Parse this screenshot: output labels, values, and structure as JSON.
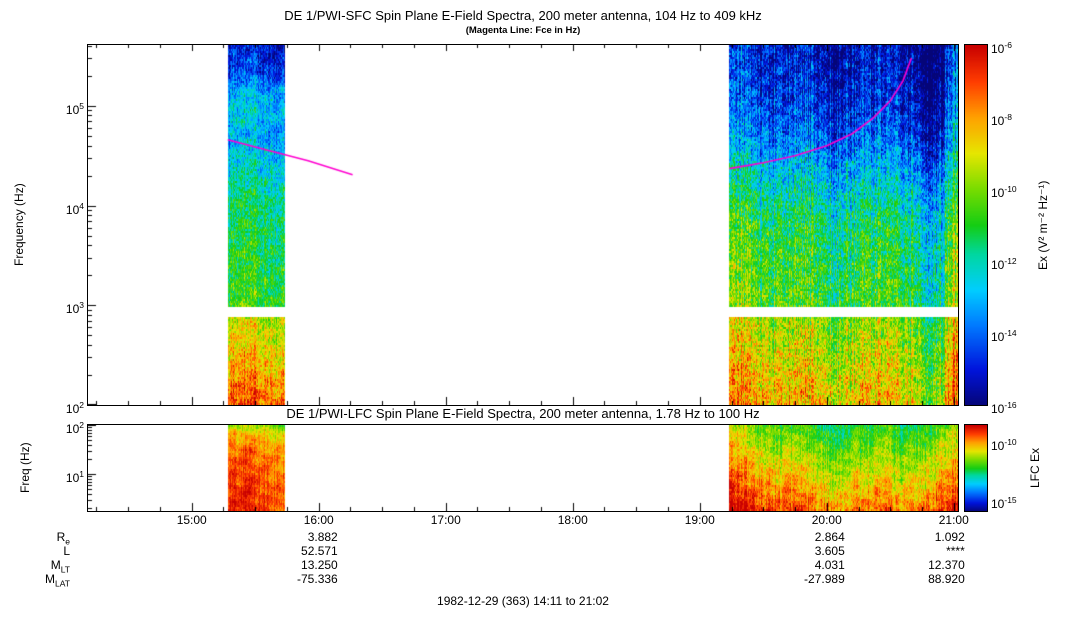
{
  "panels": {
    "sfc": {
      "title": "DE 1/PWI-SFC  Spin Plane E-Field Spectra, 200 meter antenna, 104 Hz to 409 kHz",
      "subtitle": "(Magenta Line: Fce in Hz)",
      "ylabel": "Frequency (Hz)",
      "colorbar_label": "Ex (V² m⁻² Hz⁻¹)"
    },
    "lfc": {
      "title": "DE 1/PWI-LFC  Spin Plane E-Field Spectra, 200 meter antenna, 1.78 Hz to 100 Hz",
      "ylabel": "Freq (Hz)",
      "colorbar_label": "LFC Ex"
    }
  },
  "footer": {
    "rows": [
      {
        "base": "R",
        "sub": "e",
        "values": [
          "3.882",
          "2.864",
          "1.092"
        ]
      },
      {
        "base": "L",
        "sub": "",
        "values": [
          "52.571",
          "3.605",
          "****"
        ]
      },
      {
        "base": "M",
        "sub": "LT",
        "values": [
          "13.250",
          "4.031",
          "12.370"
        ]
      },
      {
        "base": "M",
        "sub": "LAT",
        "values": [
          "-75.336",
          "-27.989",
          "88.920"
        ]
      }
    ],
    "value_columns_time": [
      "16:00",
      "20:00",
      "21:00"
    ],
    "caption": "1982-12-29 (363) 14:11 to 21:02"
  },
  "chart_data": [
    {
      "id": "sfc",
      "type": "heatmap",
      "title": "DE 1/PWI-SFC  Spin Plane E-Field Spectra, 200 meter antenna, 104 Hz to 409 kHz",
      "subtitle": "(Magenta Line: Fce in Hz)",
      "ylabel": "Frequency (Hz)",
      "y_log_range": [
        2.0,
        5.61
      ],
      "y_tick_exponents": [
        5,
        4,
        3,
        2
      ],
      "x_range_minutes": [
        851,
        1262
      ],
      "x_hour_ticks": [
        900,
        960,
        1020,
        1080,
        1140,
        1200,
        1260
      ],
      "x_tick_labels": [],
      "time_span": "14:11 to 21:02",
      "white_gap_logf": [
        2.88,
        2.98
      ],
      "colorbar": {
        "label": "Ex (V² m⁻² Hz⁻¹)",
        "log_range": [
          -6,
          -16
        ],
        "tick_exponents": [
          -6,
          -8,
          -10,
          -12,
          -14,
          -16
        ]
      },
      "fce_line_color": "#ff00d0",
      "fce_segments": [
        [
          [
            917,
            4.66
          ],
          [
            935,
            4.56
          ],
          [
            955,
            4.45
          ],
          [
            976,
            4.31
          ]
        ],
        [
          [
            1154,
            4.37
          ],
          [
            1170,
            4.43
          ],
          [
            1185,
            4.5
          ],
          [
            1200,
            4.6
          ],
          [
            1212,
            4.72
          ],
          [
            1222,
            4.88
          ],
          [
            1230,
            5.05
          ],
          [
            1236,
            5.25
          ],
          [
            1240,
            5.48
          ]
        ]
      ],
      "bands": [
        {
          "t": [
            917,
            944
          ],
          "profile": [
            [
              2.0,
              0.87
            ],
            [
              2.15,
              0.84
            ],
            [
              2.35,
              0.78
            ],
            [
              2.6,
              0.72
            ],
            [
              2.88,
              0.66
            ],
            [
              2.98,
              0.53
            ],
            [
              3.3,
              0.5
            ],
            [
              3.7,
              0.47
            ],
            [
              4.1,
              0.43
            ],
            [
              4.45,
              0.34
            ],
            [
              4.7,
              0.28
            ],
            [
              4.95,
              0.33
            ],
            [
              5.15,
              0.28
            ],
            [
              5.35,
              0.14
            ],
            [
              5.61,
              0.1
            ]
          ],
          "noise": 0.1,
          "col_noise": 0.07
        },
        {
          "t": [
            1154,
            1262
          ],
          "profile": [
            [
              2.0,
              0.74
            ],
            [
              2.3,
              0.7
            ],
            [
              2.6,
              0.64
            ],
            [
              2.88,
              0.6
            ],
            [
              2.98,
              0.53
            ],
            [
              3.1,
              0.51
            ],
            [
              3.4,
              0.49
            ],
            [
              3.8,
              0.45
            ],
            [
              4.1,
              0.37
            ],
            [
              4.4,
              0.28
            ],
            [
              4.7,
              0.18
            ],
            [
              5.0,
              0.12
            ],
            [
              5.3,
              0.08
            ],
            [
              5.61,
              0.06
            ]
          ],
          "noise": 0.12,
          "col_noise": 0.1,
          "col_boost": [
            [
              1154,
              0.06
            ],
            [
              1162,
              0.1
            ],
            [
              1175,
              0.04
            ],
            [
              1190,
              0.0
            ],
            [
              1242,
              0.0
            ],
            [
              1248,
              -0.2
            ],
            [
              1254,
              -0.12
            ],
            [
              1257,
              0.04
            ],
            [
              1260,
              0.12
            ],
            [
              1262,
              0.1
            ]
          ]
        }
      ]
    },
    {
      "id": "lfc",
      "type": "heatmap",
      "title": "DE 1/PWI-LFC  Spin Plane E-Field Spectra, 200 meter antenna, 1.78 Hz to 100 Hz",
      "ylabel": "Freq (Hz)",
      "y_log_range": [
        0.25,
        2.0
      ],
      "y_tick_exponents": [
        2,
        1
      ],
      "x_range_minutes": [
        851,
        1262
      ],
      "x_hour_ticks": [
        900,
        960,
        1020,
        1080,
        1140,
        1200,
        1260
      ],
      "x_tick_labels": [
        "15:00",
        "16:00",
        "17:00",
        "18:00",
        "19:00",
        "20:00",
        "21:00"
      ],
      "time_span": "14:11 to 21:02",
      "colorbar": {
        "label": "LFC Ex",
        "log_range": [
          -8.5,
          -16
        ],
        "tick_exponents": [
          -10,
          -15
        ]
      },
      "bands": [
        {
          "t": [
            917,
            944
          ],
          "profile": [
            [
              0.25,
              0.92
            ],
            [
              0.7,
              0.9
            ],
            [
              1.1,
              0.87
            ],
            [
              1.5,
              0.83
            ],
            [
              1.8,
              0.75
            ],
            [
              2.0,
              0.6
            ]
          ],
          "noise": 0.06,
          "col_noise": 0.06
        },
        {
          "t": [
            1154,
            1262
          ],
          "profile": [
            [
              0.25,
              0.84
            ],
            [
              0.6,
              0.76
            ],
            [
              1.0,
              0.68
            ],
            [
              1.4,
              0.6
            ],
            [
              1.7,
              0.54
            ],
            [
              2.0,
              0.48
            ]
          ],
          "noise": 0.08,
          "col_noise": 0.07,
          "col_boost": [
            [
              1154,
              0.15
            ],
            [
              1168,
              0.12
            ],
            [
              1180,
              0.05
            ],
            [
              1195,
              0.0
            ],
            [
              1246,
              0.0
            ],
            [
              1252,
              0.05
            ],
            [
              1258,
              0.1
            ],
            [
              1262,
              0.12
            ]
          ]
        }
      ]
    }
  ]
}
